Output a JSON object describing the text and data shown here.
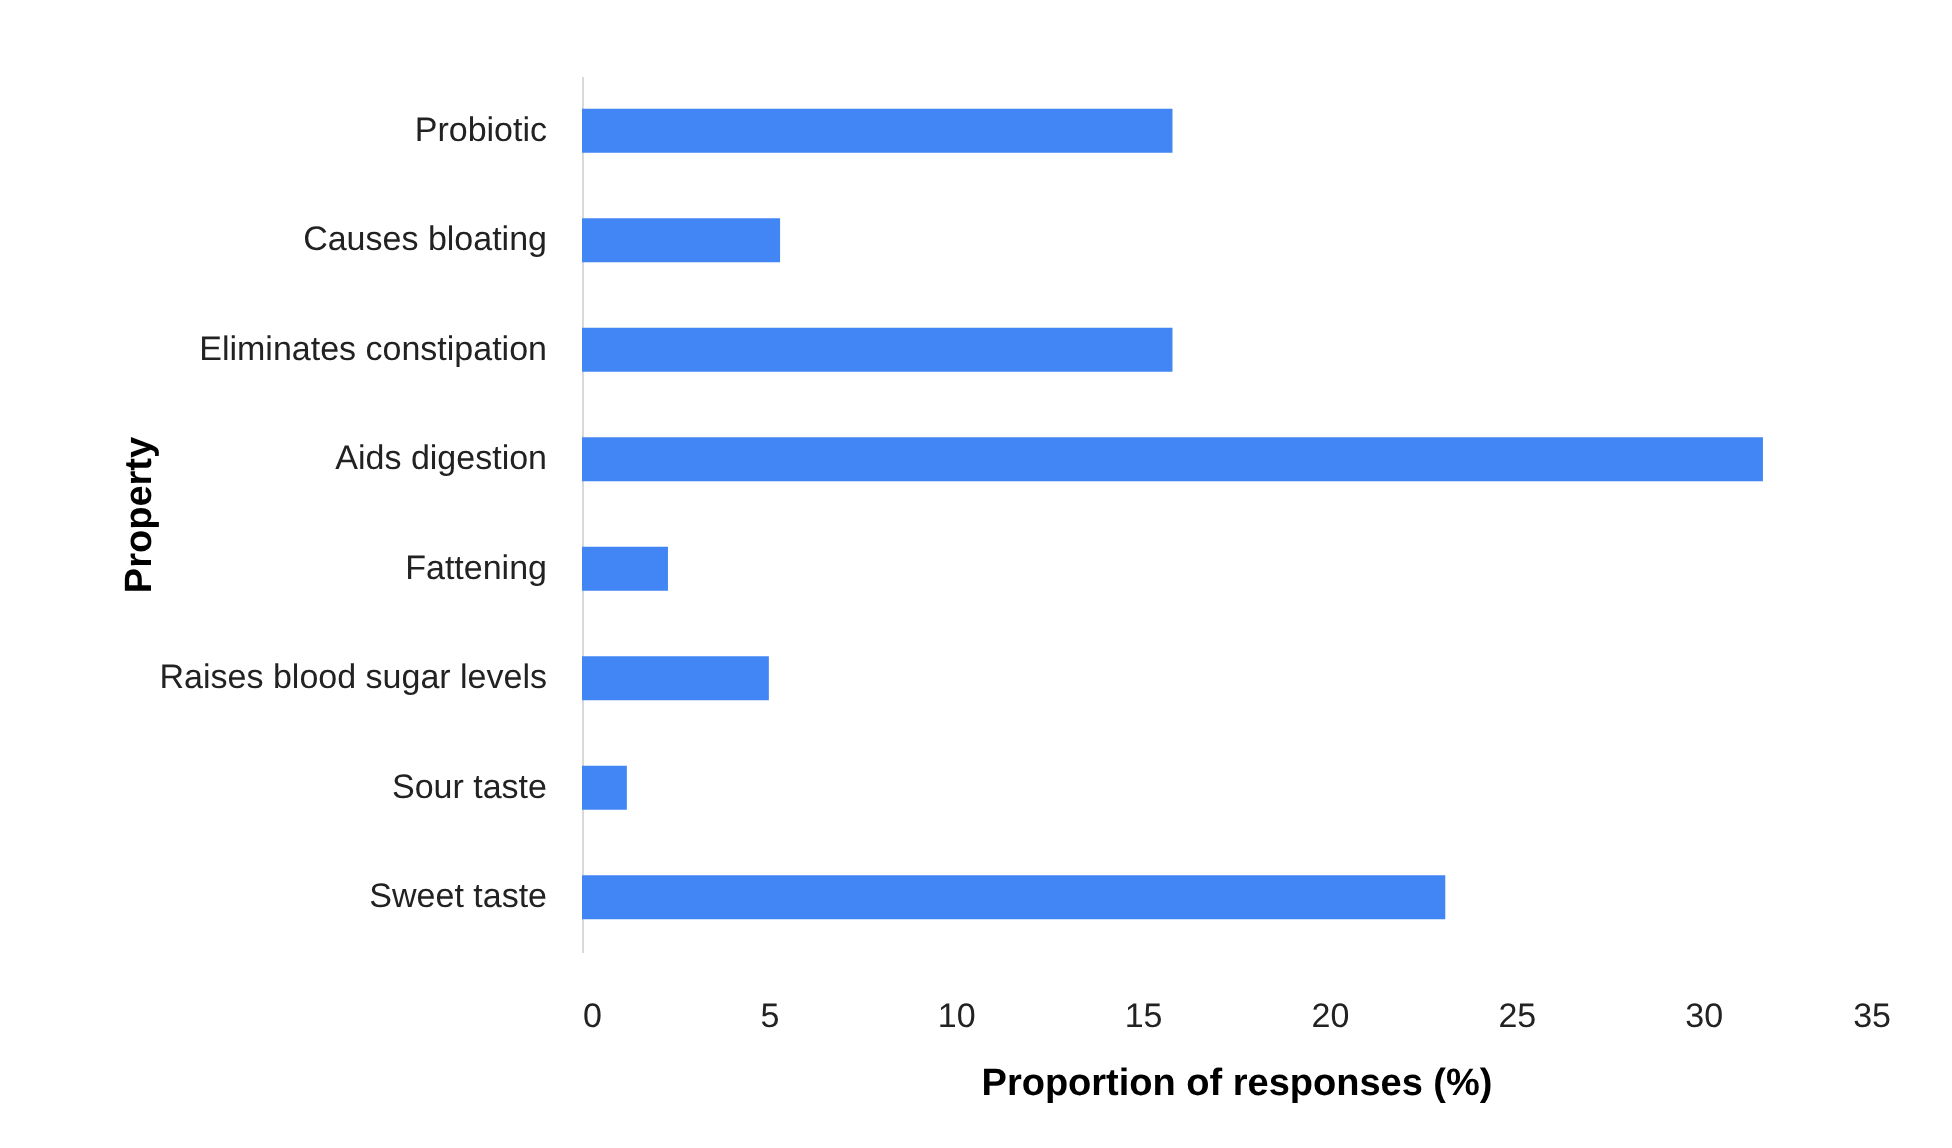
{
  "chart_data": {
    "type": "bar",
    "orientation": "horizontal",
    "xlabel": "Proportion of responses (%)",
    "ylabel": "Property",
    "categories": [
      "Probiotic",
      "Causes bloating",
      "Eliminates constipation",
      "Aids digestion",
      "Fattening",
      "Raises blood sugar levels",
      "Sour taste",
      "Sweet taste"
    ],
    "values": [
      15.8,
      5.3,
      15.8,
      31.6,
      2.3,
      5.0,
      1.2,
      23.1
    ],
    "color": "#4285f4",
    "xlim": [
      0,
      35
    ],
    "xticks": [
      0,
      5,
      10,
      15,
      20,
      25,
      30,
      35
    ],
    "grid": false
  }
}
